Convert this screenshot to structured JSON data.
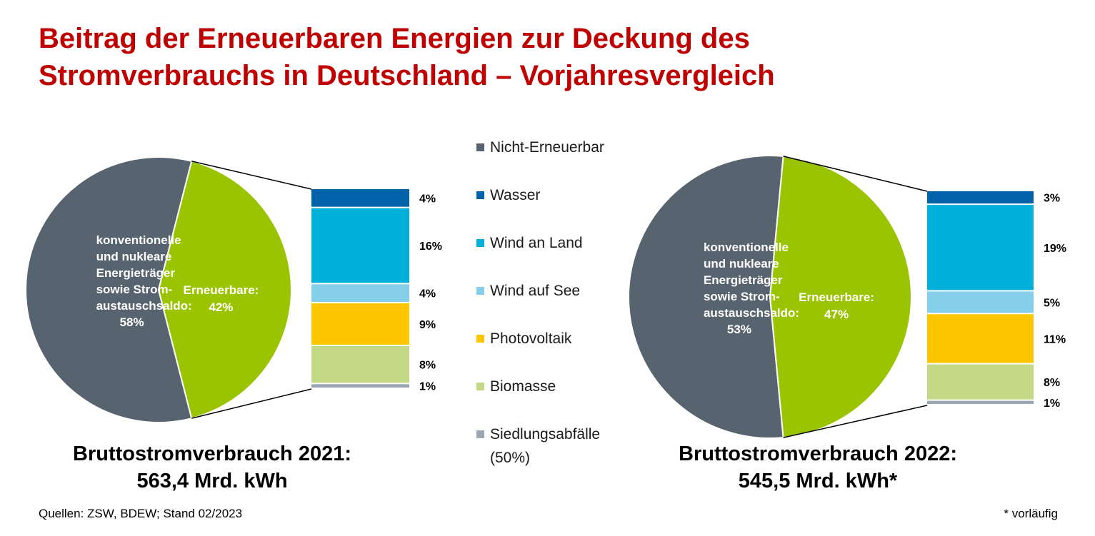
{
  "title": {
    "line1": "Beitrag der Erneuerbaren Energien zur Deckung des",
    "line2": "Stromverbrauchs in Deutschland – Vorjahresvergleich"
  },
  "legend": [
    {
      "label": "Nicht-Erneuerbar",
      "color": "#57636f"
    },
    {
      "label": "Wasser",
      "color": "#0062a8"
    },
    {
      "label": "Wind an Land",
      "color": "#00b0d8"
    },
    {
      "label": "Wind auf See",
      "color": "#86cfea"
    },
    {
      "label": "Photovoltaik",
      "color": "#fcc600"
    },
    {
      "label": "Biomasse",
      "color": "#c3d985"
    },
    {
      "label": "Siedlungsabfälle (50%)",
      "color": "#9aa6b1"
    }
  ],
  "chart_data": [
    {
      "type": "pie",
      "pie": {
        "slices": [
          {
            "name": "Nicht-Erneuerbar",
            "value": 58,
            "color": "#57636f",
            "label_lines": [
              "konventionelle",
              "und nukleare",
              "Energieträger",
              "sowie Strom-",
              "austauschsaldo:",
              "58%"
            ]
          },
          {
            "name": "Erneuerbare",
            "value": 42,
            "color": "#9bc400",
            "label_lines": [
              "Erneuerbare:",
              "42%"
            ]
          }
        ]
      },
      "bar": {
        "type": "bar",
        "stacked": true,
        "categories": [
          "Wasser",
          "Wind an Land",
          "Wind auf See",
          "Photovoltaik",
          "Biomasse",
          "Siedlungsabfälle (50%)"
        ],
        "values": [
          4,
          16,
          4,
          9,
          8,
          1
        ],
        "labels": [
          "4%",
          "16%",
          "4%",
          "9%",
          "8%",
          "1%"
        ]
      },
      "caption": {
        "line1": "Bruttostromverbrauch 2021:",
        "line2": "563,4 Mrd. kWh"
      }
    },
    {
      "type": "pie",
      "pie": {
        "slices": [
          {
            "name": "Nicht-Erneuerbar",
            "value": 53,
            "color": "#57636f",
            "label_lines": [
              "konventionelle",
              "und nukleare",
              "Energieträger",
              "sowie Strom-",
              "austauschsaldo:",
              "53%"
            ]
          },
          {
            "name": "Erneuerbare",
            "value": 47,
            "color": "#9bc400",
            "label_lines": [
              "Erneuerbare:",
              "47%"
            ]
          }
        ]
      },
      "bar": {
        "type": "bar",
        "stacked": true,
        "categories": [
          "Wasser",
          "Wind an Land",
          "Wind auf See",
          "Photovoltaik",
          "Biomasse",
          "Siedlungsabfälle (50%)"
        ],
        "values": [
          3,
          19,
          5,
          11,
          8,
          1
        ],
        "labels": [
          "3%",
          "19%",
          "5%",
          "11%",
          "8%",
          "1%"
        ]
      },
      "caption": {
        "line1": "Bruttostromverbrauch 2022:",
        "line2": "545,5 Mrd. kWh*"
      }
    }
  ],
  "footer": {
    "source": "Quellen: ZSW, BDEW; Stand 02/2023",
    "note": "* vorläufig"
  }
}
